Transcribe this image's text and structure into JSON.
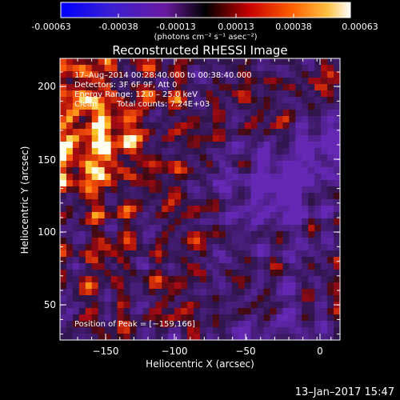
{
  "colorbar": {
    "tick_labels": [
      "-0.00063",
      "-0.00038",
      "-0.00013",
      "0.00013",
      "0.00038",
      "0.00063"
    ],
    "units_label": "(photons cm⁻² s⁻¹ asec⁻²)"
  },
  "plot": {
    "title": "Reconstructed RHESSI Image",
    "xlabel": "Heliocentric X (arcsec)",
    "ylabel": "Heliocentric Y (arcsec)",
    "x_ticks": [
      "−150",
      "−100",
      "−50",
      "0"
    ],
    "y_ticks": [
      "200",
      "150",
      "100",
      "50"
    ]
  },
  "annotations": {
    "time_range": "17–Aug–2014 00:28:40.000 to 00:38:40.000",
    "detectors": "Detectors: 3F 6F 9F, Att 0",
    "energy_range": "Energy Range: 12.0 – 25.0 keV",
    "clean": "Clean",
    "total_counts": "Total counts: 7.24E+03",
    "peak": "Position of Peak = [−159,166]"
  },
  "footer": {
    "date": "13–Jan–2017 15:47"
  }
}
